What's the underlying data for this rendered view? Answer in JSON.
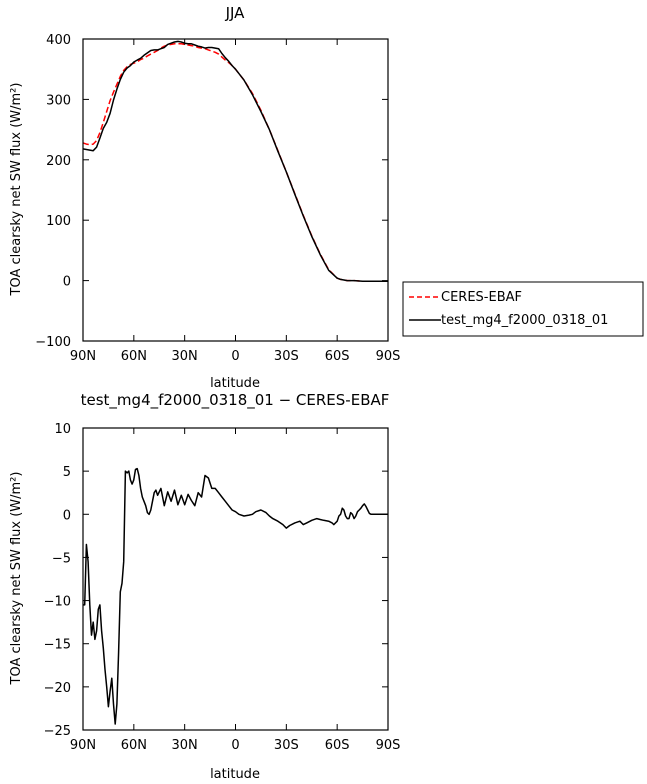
{
  "chart_data": [
    {
      "type": "line",
      "title": "JJA",
      "xlabel": "latitude",
      "ylabel": "TOA clearsky net SW flux (W/m²)",
      "x_ticks": [
        90,
        60,
        30,
        0,
        -30,
        -60,
        -90
      ],
      "x_tick_labels": [
        "90N",
        "60N",
        "30N",
        "0",
        "30S",
        "60S",
        "90S"
      ],
      "xlim": [
        90,
        -90
      ],
      "ylim": [
        -100,
        400
      ],
      "y_ticks": [
        -100,
        0,
        100,
        200,
        300,
        400
      ],
      "y_tick_labels": [
        "−100",
        "0",
        "100",
        "200",
        "300",
        "400"
      ],
      "legend_position": "outside-right",
      "series": [
        {
          "name": "CERES-EBAF",
          "color": "#ff0000",
          "dash": "dashed",
          "x": [
            90,
            88,
            86,
            84,
            82,
            80,
            78,
            76,
            74,
            72,
            70,
            68,
            66,
            64,
            62,
            60,
            58,
            56,
            54,
            52,
            50,
            48,
            46,
            44,
            42,
            40,
            38,
            36,
            34,
            32,
            30,
            28,
            26,
            24,
            22,
            20,
            18,
            16,
            14,
            12,
            10,
            8,
            6,
            4,
            2,
            0,
            -5,
            -10,
            -15,
            -20,
            -25,
            -30,
            -35,
            -40,
            -45,
            -50,
            -55,
            -60,
            -62,
            -64,
            -66,
            -68,
            -70,
            -75,
            -80,
            -85,
            -90
          ],
          "y": [
            228,
            226,
            225,
            226,
            232,
            245,
            262,
            280,
            298,
            312,
            325,
            338,
            348,
            354,
            358,
            360,
            362,
            366,
            368,
            372,
            375,
            378,
            381,
            385,
            388,
            390,
            391,
            392,
            392,
            392,
            391,
            390,
            389,
            388,
            386,
            385,
            384,
            382,
            380,
            378,
            375,
            370,
            365,
            361,
            356,
            350,
            332,
            310,
            282,
            250,
            215,
            180,
            144,
            108,
            74,
            44,
            18,
            4,
            2,
            1,
            0,
            0,
            0,
            -1,
            -1,
            -1,
            -1
          ]
        },
        {
          "name": "test_mg4_f2000_0318_01",
          "color": "#000000",
          "dash": "solid",
          "x": [
            90,
            88,
            86,
            84,
            82,
            80,
            78,
            76,
            74,
            72,
            70,
            68,
            66,
            64,
            62,
            60,
            58,
            56,
            54,
            52,
            50,
            48,
            46,
            44,
            42,
            40,
            38,
            36,
            34,
            32,
            30,
            28,
            26,
            24,
            22,
            20,
            18,
            16,
            14,
            12,
            10,
            8,
            6,
            4,
            2,
            0,
            -5,
            -10,
            -15,
            -20,
            -25,
            -30,
            -35,
            -40,
            -45,
            -50,
            -55,
            -60,
            -62,
            -64,
            -66,
            -68,
            -70,
            -75,
            -80,
            -85,
            -90
          ],
          "y": [
            218,
            217,
            216,
            215,
            221,
            236,
            252,
            262,
            277,
            299,
            317,
            333,
            345,
            352,
            356,
            362,
            365,
            368,
            373,
            377,
            381,
            382,
            382,
            384,
            386,
            391,
            393,
            395,
            396,
            395,
            393,
            392,
            392,
            390,
            388,
            387,
            385,
            386,
            386,
            385,
            384,
            376,
            369,
            363,
            356,
            350,
            332,
            308,
            280,
            250,
            214,
            180,
            143,
            107,
            73,
            43,
            17,
            4,
            2,
            1,
            0,
            0,
            0,
            -1,
            -1,
            -1,
            -1
          ]
        }
      ]
    },
    {
      "type": "line",
      "title": "test_mg4_f2000_0318_01 − CERES-EBAF",
      "xlabel": "latitude",
      "ylabel": "TOA clearsky net SW flux (W/m²)",
      "x_ticks": [
        90,
        60,
        30,
        0,
        -30,
        -60,
        -90
      ],
      "x_tick_labels": [
        "90N",
        "60N",
        "30N",
        "0",
        "30S",
        "60S",
        "90S"
      ],
      "xlim": [
        90,
        -90
      ],
      "ylim": [
        -25,
        10
      ],
      "y_ticks": [
        -25,
        -20,
        -15,
        -10,
        -5,
        0,
        5,
        10
      ],
      "y_tick_labels": [
        "−25",
        "−20",
        "−15",
        "−10",
        "−5",
        "0",
        "5",
        "10"
      ],
      "series": [
        {
          "color": "#000000",
          "x": [
            90,
            89,
            88,
            87,
            86,
            85,
            84,
            83,
            82,
            81,
            80,
            79,
            78,
            77,
            76,
            75,
            74,
            73,
            72,
            71,
            70,
            69,
            68,
            67,
            66,
            65,
            64,
            63,
            62,
            61,
            60,
            59,
            58,
            57,
            56,
            55,
            54,
            53,
            52,
            51,
            50,
            49,
            48,
            47,
            46,
            44,
            42,
            40,
            38,
            36,
            34,
            32,
            30,
            28,
            26,
            24,
            22,
            20,
            18,
            16,
            14,
            12,
            10,
            8,
            6,
            4,
            2,
            0,
            -2,
            -5,
            -8,
            -10,
            -12,
            -15,
            -18,
            -20,
            -22,
            -25,
            -28,
            -30,
            -32,
            -35,
            -38,
            -40,
            -42,
            -45,
            -48,
            -50,
            -52,
            -55,
            -57,
            -58,
            -60,
            -61,
            -62,
            -63,
            -64,
            -65,
            -66,
            -67,
            -68,
            -69,
            -70,
            -71,
            -72,
            -73,
            -74,
            -75,
            -76,
            -77,
            -78,
            -79,
            -80,
            -82,
            -84,
            -86,
            -88,
            -90
          ],
          "y": [
            -10.5,
            -10.5,
            -3.5,
            -5.5,
            -10.5,
            -14,
            -12.5,
            -14.5,
            -13.5,
            -11,
            -10.5,
            -13.5,
            -15.5,
            -18,
            -20,
            -22.3,
            -20.5,
            -19,
            -22,
            -24.3,
            -22,
            -16,
            -9,
            -8,
            -5.5,
            5,
            4.8,
            5,
            4,
            3.5,
            4,
            5.2,
            5.3,
            4.5,
            3,
            2,
            1.5,
            1,
            0.2,
            0,
            0.5,
            1.5,
            2.5,
            2.8,
            2.2,
            3.0,
            1.0,
            2.6,
            1.5,
            2.8,
            1.1,
            2.2,
            1.1,
            2.3,
            1.6,
            1.0,
            2.5,
            2.0,
            4.5,
            4.2,
            3.0,
            3.0,
            2.5,
            2.0,
            1.5,
            1.0,
            0.5,
            0.3,
            0,
            -0.2,
            -0.1,
            0.0,
            0.3,
            0.5,
            0.2,
            -0.2,
            -0.5,
            -0.8,
            -1.2,
            -1.6,
            -1.3,
            -1.0,
            -0.8,
            -1.2,
            -1.0,
            -0.7,
            -0.5,
            -0.6,
            -0.7,
            -0.8,
            -1.0,
            -1.2,
            -0.8,
            -0.2,
            0.0,
            0.7,
            0.5,
            -0.2,
            -0.5,
            -0.5,
            0.2,
            0.0,
            -0.5,
            -0.2,
            0.3,
            0.5,
            0.7,
            1.0,
            1.2,
            0.9,
            0.5,
            0.1,
            0.0,
            0.0,
            0.0,
            0.0,
            0.0,
            0.0
          ]
        }
      ]
    }
  ]
}
